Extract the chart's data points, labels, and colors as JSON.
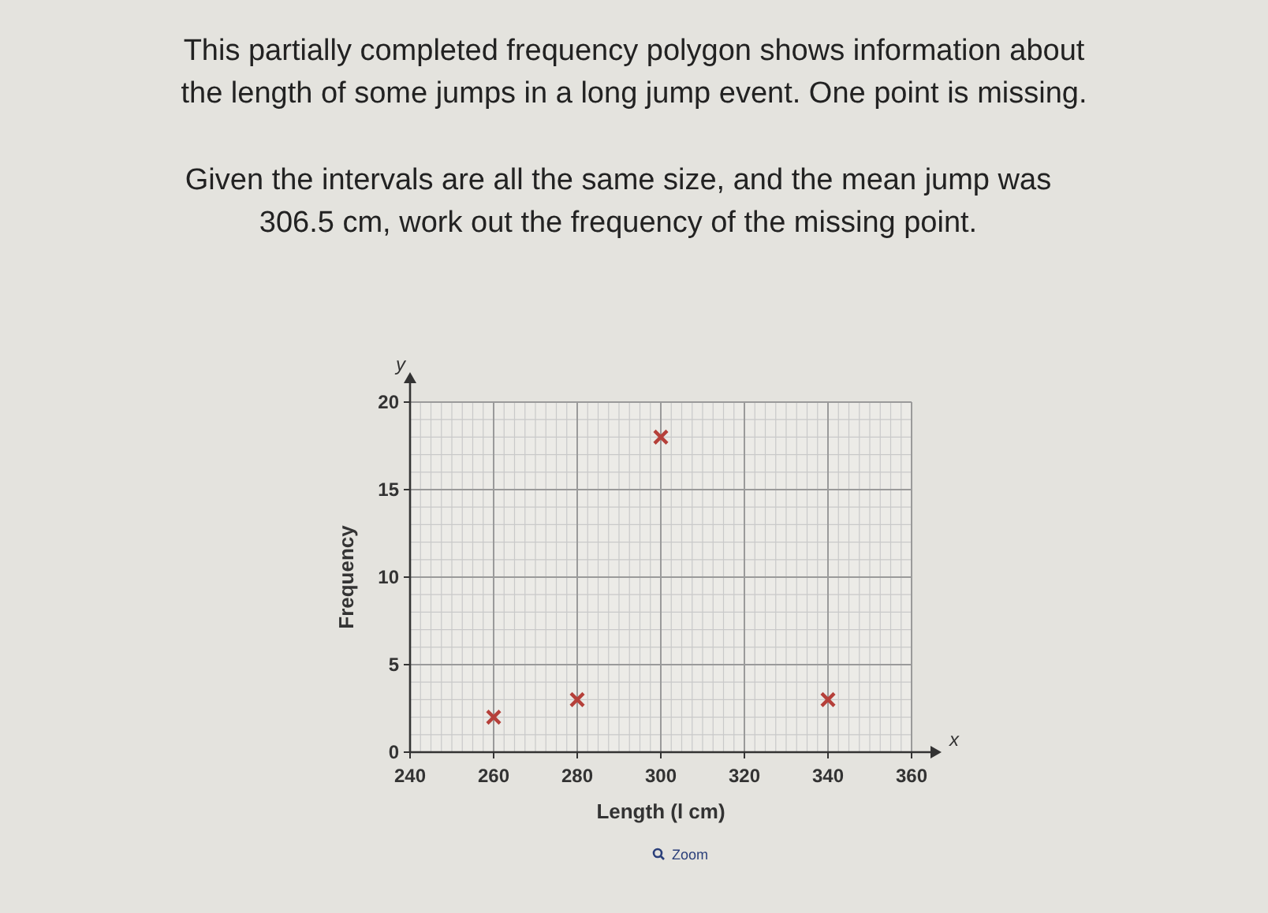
{
  "chart_data": {
    "type": "scatter",
    "title": "This partially completed frequency polygon shows information about the length of some jumps in a long jump event. One point is missing.",
    "subtitle": "Given the intervals are all the same size, and the mean jump was 306.5 cm, work out the frequency of the missing point.",
    "xlabel": "Length (l cm)",
    "ylabel": "Frequency",
    "annotations": [
      "y",
      "x",
      "Zoom"
    ],
    "x": [
      260,
      280,
      300,
      340
    ],
    "series": [
      {
        "color": "#b5403a",
        "values": [
          2,
          3,
          18,
          3
        ]
      }
    ],
    "xlim": [
      240,
      360
    ],
    "xticks": [
      240,
      260,
      280,
      300,
      320,
      340,
      360
    ],
    "ylim": [
      0,
      20
    ],
    "yticks": [
      0,
      5,
      10,
      15,
      20
    ],
    "grid": true,
    "marker": "cross"
  }
}
